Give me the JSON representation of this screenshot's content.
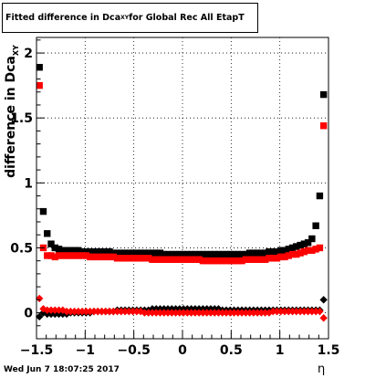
{
  "title": {
    "prefix": "Fitted difference in Dca",
    "sub": "XY",
    "suffix": " for Global Rec All EtapT"
  },
  "ylabel": {
    "main": "difference in Dca",
    "sub": "XY"
  },
  "xlabel": "η",
  "datestamp": "Wed Jun  7 18:07:25 2017",
  "colors": {
    "black_series": "#000000",
    "red_series": "#ff0000"
  },
  "chart_data": {
    "type": "scatter",
    "xlabel": "η",
    "ylabel": "difference in Dca_XY",
    "xlim": [
      -1.5,
      1.5
    ],
    "ylim": [
      -0.2,
      2.12
    ],
    "grid": true,
    "x_ticks": [
      -1.5,
      -1,
      -0.5,
      0,
      0.5,
      1,
      1.5
    ],
    "x_tick_labels": [
      "−1.5",
      "−1",
      "−0.5",
      "0",
      "0.5",
      "1",
      "1.5"
    ],
    "y_ticks": [
      0,
      0.5,
      1,
      1.5,
      2
    ],
    "y_tick_labels": [
      "0",
      "0.5",
      "1",
      "1.5",
      "2"
    ],
    "x": [
      -1.47,
      -1.43,
      -1.39,
      -1.35,
      -1.31,
      -1.27,
      -1.23,
      -1.19,
      -1.15,
      -1.11,
      -1.07,
      -1.03,
      -0.99,
      -0.95,
      -0.91,
      -0.87,
      -0.83,
      -0.79,
      -0.75,
      -0.71,
      -0.67,
      -0.63,
      -0.59,
      -0.55,
      -0.51,
      -0.47,
      -0.43,
      -0.39,
      -0.35,
      -0.31,
      -0.27,
      -0.23,
      -0.19,
      -0.15,
      -0.11,
      -0.07,
      -0.03,
      0.01,
      0.05,
      0.09,
      0.13,
      0.17,
      0.21,
      0.25,
      0.29,
      0.33,
      0.37,
      0.41,
      0.45,
      0.49,
      0.53,
      0.57,
      0.61,
      0.65,
      0.69,
      0.73,
      0.77,
      0.81,
      0.85,
      0.89,
      0.93,
      0.97,
      1.01,
      1.05,
      1.09,
      1.13,
      1.17,
      1.21,
      1.25,
      1.29,
      1.33,
      1.37,
      1.41,
      1.45
    ],
    "series": [
      {
        "marker": "square",
        "color": "#000000",
        "values": [
          1.89,
          0.78,
          0.61,
          0.53,
          0.5,
          0.49,
          0.48,
          0.48,
          0.48,
          0.48,
          0.48,
          0.47,
          0.47,
          0.47,
          0.47,
          0.47,
          0.47,
          0.47,
          0.47,
          0.46,
          0.46,
          0.46,
          0.46,
          0.46,
          0.46,
          0.46,
          0.46,
          0.46,
          0.46,
          0.46,
          0.46,
          0.46,
          0.45,
          0.45,
          0.45,
          0.45,
          0.45,
          0.45,
          0.45,
          0.45,
          0.45,
          0.45,
          0.45,
          0.45,
          0.45,
          0.45,
          0.45,
          0.45,
          0.45,
          0.45,
          0.45,
          0.45,
          0.45,
          0.45,
          0.46,
          0.46,
          0.46,
          0.46,
          0.46,
          0.47,
          0.47,
          0.47,
          0.48,
          0.48,
          0.49,
          0.5,
          0.51,
          0.52,
          0.53,
          0.54,
          0.57,
          0.67,
          0.9,
          1.68
        ]
      },
      {
        "marker": "square",
        "color": "#ff0000",
        "values": [
          1.75,
          0.5,
          0.44,
          0.44,
          0.43,
          0.44,
          0.44,
          0.44,
          0.44,
          0.44,
          0.44,
          0.44,
          0.44,
          0.43,
          0.43,
          0.43,
          0.43,
          0.43,
          0.43,
          0.43,
          0.42,
          0.42,
          0.42,
          0.42,
          0.42,
          0.42,
          0.42,
          0.42,
          0.42,
          0.41,
          0.41,
          0.41,
          0.41,
          0.41,
          0.41,
          0.41,
          0.41,
          0.41,
          0.41,
          0.41,
          0.41,
          0.41,
          0.4,
          0.4,
          0.4,
          0.4,
          0.4,
          0.4,
          0.4,
          0.4,
          0.4,
          0.4,
          0.4,
          0.41,
          0.41,
          0.41,
          0.41,
          0.41,
          0.41,
          0.42,
          0.42,
          0.42,
          0.43,
          0.43,
          0.44,
          0.45,
          0.45,
          0.46,
          0.47,
          0.48,
          0.48,
          0.49,
          0.5,
          1.44
        ]
      },
      {
        "marker": "diamond",
        "color": "#000000",
        "values": [
          -0.03,
          0.0,
          -0.01,
          -0.01,
          -0.01,
          -0.01,
          -0.01,
          -0.01,
          0.0,
          0.0,
          0.0,
          0.0,
          0.0,
          0.0,
          0.01,
          0.01,
          0.01,
          0.01,
          0.01,
          0.01,
          0.02,
          0.02,
          0.02,
          0.02,
          0.02,
          0.02,
          0.02,
          0.02,
          0.02,
          0.03,
          0.03,
          0.03,
          0.03,
          0.03,
          0.03,
          0.03,
          0.03,
          0.03,
          0.03,
          0.03,
          0.03,
          0.03,
          0.03,
          0.03,
          0.03,
          0.03,
          0.03,
          0.02,
          0.02,
          0.02,
          0.02,
          0.02,
          0.02,
          0.02,
          0.02,
          0.02,
          0.02,
          0.02,
          0.02,
          0.02,
          0.02,
          0.02,
          0.02,
          0.02,
          0.02,
          0.02,
          0.02,
          0.02,
          0.02,
          0.02,
          0.02,
          0.02,
          0.02,
          0.1
        ]
      },
      {
        "marker": "diamond",
        "color": "#ff0000",
        "values": [
          0.11,
          0.03,
          0.02,
          0.02,
          0.02,
          0.02,
          0.02,
          0.01,
          0.01,
          0.01,
          0.01,
          0.01,
          0.01,
          0.01,
          0.01,
          0.01,
          0.01,
          0.01,
          0.01,
          0.01,
          0.01,
          0.01,
          0.01,
          0.01,
          0.01,
          0.01,
          0.01,
          0.0,
          0.0,
          0.0,
          0.0,
          0.0,
          0.0,
          0.0,
          0.0,
          0.0,
          0.0,
          0.0,
          0.0,
          0.0,
          0.0,
          0.0,
          0.0,
          0.0,
          0.0,
          0.0,
          0.0,
          0.0,
          0.0,
          0.0,
          0.0,
          0.0,
          0.0,
          0.0,
          0.0,
          0.0,
          0.0,
          0.0,
          0.0,
          0.0,
          0.01,
          0.01,
          0.01,
          0.01,
          0.01,
          0.01,
          0.01,
          0.01,
          0.01,
          0.01,
          0.01,
          0.01,
          0.01,
          -0.04
        ]
      }
    ]
  }
}
